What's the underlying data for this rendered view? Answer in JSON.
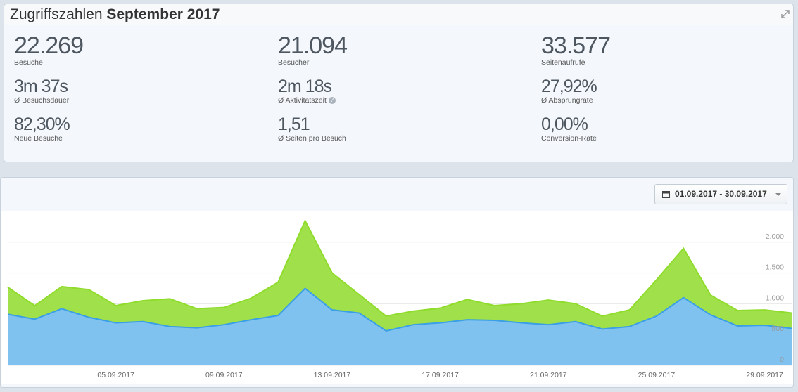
{
  "header": {
    "title": "Zugriffszahlen",
    "title_bold": "September 2017"
  },
  "stats": [
    [
      {
        "value": "22.269",
        "label": "Besuche"
      },
      {
        "value": "21.094",
        "label": "Besucher"
      },
      {
        "value": "33.577",
        "label": "Seitenaufrufe"
      }
    ],
    [
      {
        "value": "3m 37s",
        "label": "Ø Besuchsdauer"
      },
      {
        "value": "2m 18s",
        "label": "Ø Aktivitätszeit"
      },
      {
        "value": "27,92%",
        "label": "Ø Absprungrate"
      }
    ],
    [
      {
        "value": "82,30%",
        "label": "Neue Besuche"
      },
      {
        "value": "1,51",
        "label": "Ø Seiten pro Besuch"
      },
      {
        "value": "0,00%",
        "label": "Conversion-Rate"
      }
    ]
  ],
  "date_range": "01.09.2017 - 30.09.2017",
  "chart_data": {
    "type": "area",
    "categories": [
      null,
      null,
      null,
      null,
      "05.09.2017",
      null,
      null,
      null,
      "09.09.2017",
      null,
      null,
      null,
      "13.09.2017",
      null,
      null,
      null,
      "17.09.2017",
      null,
      null,
      null,
      "21.09.2017",
      null,
      null,
      null,
      "25.09.2017",
      null,
      null,
      null,
      "29.09.2017",
      null
    ],
    "series": [
      {
        "color": "#8fdc2c",
        "values": [
          1270,
          970,
          1280,
          1230,
          970,
          1050,
          1080,
          920,
          940,
          1090,
          1350,
          2350,
          1500,
          1150,
          800,
          880,
          930,
          1070,
          970,
          1000,
          1060,
          1000,
          800,
          900,
          1390,
          1900,
          1140,
          890,
          900,
          850
        ]
      },
      {
        "color": "#3a9fe6",
        "values": [
          830,
          750,
          920,
          780,
          690,
          710,
          630,
          610,
          660,
          740,
          810,
          1250,
          900,
          850,
          560,
          660,
          690,
          740,
          730,
          690,
          660,
          710,
          590,
          630,
          800,
          1100,
          820,
          640,
          650,
          600
        ]
      }
    ],
    "ylim": [
      0,
      2500
    ],
    "yticks": [
      0,
      500,
      {
        "value": 1000,
        "label": "1.000"
      },
      {
        "value": 1500,
        "label": "1.500"
      },
      {
        "value": 2000,
        "label": "2.000"
      }
    ],
    "grid": true
  }
}
